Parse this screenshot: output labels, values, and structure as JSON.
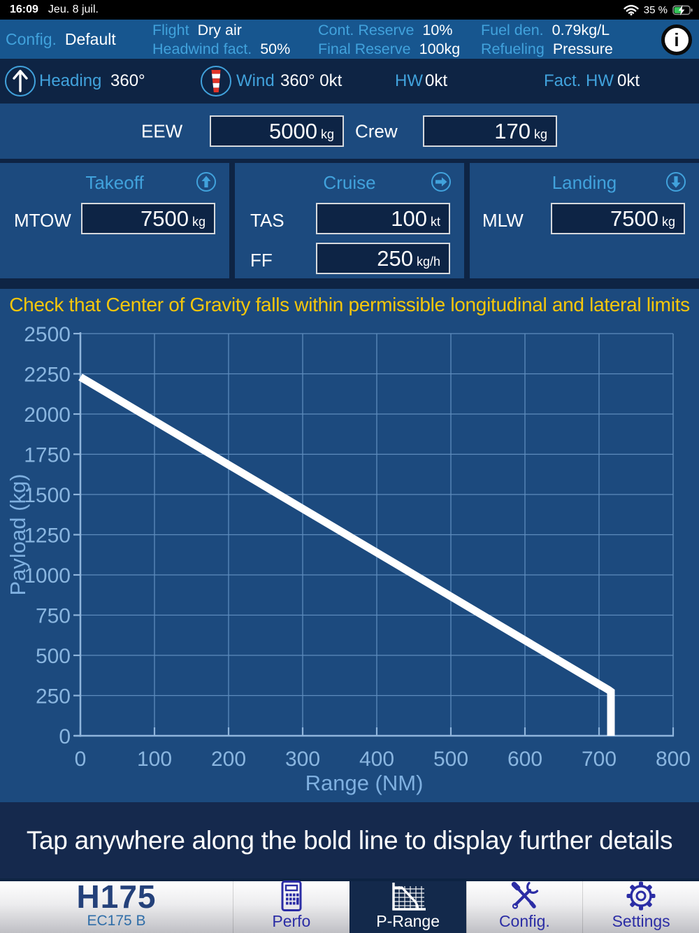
{
  "status_bar": {
    "time": "16:09",
    "date": "Jeu. 8 juil.",
    "battery": "35 %"
  },
  "config_bar": {
    "config_label": "Config.",
    "config_value": "Default",
    "items": [
      {
        "label": "Flight",
        "value": "Dry air"
      },
      {
        "label": "Headwind fact.",
        "value": "50%"
      },
      {
        "label": "Cont. Reserve",
        "value": "10%"
      },
      {
        "label": "Final Reserve",
        "value": "100kg"
      },
      {
        "label": "Fuel den.",
        "value": "0.79kg/L"
      },
      {
        "label": "Refueling",
        "value": "Pressure"
      }
    ],
    "info_glyph": "i"
  },
  "wind_row": {
    "heading_label": "Heading",
    "heading_value": "360°",
    "wind_label": "Wind",
    "wind_value": "360° 0kt",
    "hw_label": "HW",
    "hw_value": "0kt",
    "fact_hw_label": "Fact. HW",
    "fact_hw_value": "0kt"
  },
  "weights": {
    "eew_label": "EEW",
    "eew_value": "5000",
    "eew_unit": "kg",
    "crew_label": "Crew",
    "crew_value": "170",
    "crew_unit": "kg"
  },
  "panels": {
    "takeoff": {
      "title": "Takeoff",
      "fields": [
        {
          "label": "MTOW",
          "value": "7500",
          "unit": "kg"
        }
      ]
    },
    "cruise": {
      "title": "Cruise",
      "fields": [
        {
          "label": "TAS",
          "value": "100",
          "unit": "kt"
        },
        {
          "label": "FF",
          "value": "250",
          "unit": "kg/h"
        }
      ]
    },
    "landing": {
      "title": "Landing",
      "fields": [
        {
          "label": "MLW",
          "value": "7500",
          "unit": "kg"
        }
      ]
    }
  },
  "warning": "Check that Center of Gravity falls within permissible longitudinal and lateral limits",
  "chart_data": {
    "type": "line",
    "xlabel": "Range (NM)",
    "ylabel": "Payload (kg)",
    "xlim": [
      0,
      800
    ],
    "ylim": [
      0,
      2500
    ],
    "xticks": [
      0,
      100,
      200,
      300,
      400,
      500,
      600,
      700,
      800
    ],
    "yticks": [
      0,
      250,
      500,
      750,
      1000,
      1250,
      1500,
      1750,
      2000,
      2250,
      2500
    ],
    "grid": true,
    "legend": false,
    "series": [
      {
        "name": "payload-vs-range",
        "points": [
          [
            0,
            2230
          ],
          [
            713,
            285
          ],
          [
            716,
            275
          ],
          [
            716,
            0
          ]
        ]
      }
    ]
  },
  "instruction": "Tap anywhere along the bold line to display further details",
  "tab_bar": {
    "logo_title": "H175",
    "logo_subtitle": "EC175 B",
    "tabs": [
      {
        "label": "Perfo"
      },
      {
        "label": "P-Range"
      },
      {
        "label": "Config."
      },
      {
        "label": "Settings"
      }
    ]
  },
  "colors": {
    "accent_blue": "#41a2dc",
    "warning_yellow": "#f5c60b",
    "chart_line": "#ffffff",
    "tab_navy": "#2b2da5",
    "battery_green": "#34c759"
  }
}
